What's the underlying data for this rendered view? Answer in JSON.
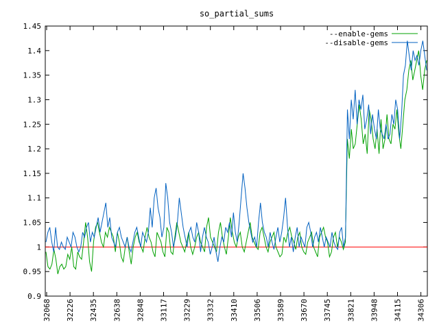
{
  "chart_data": {
    "type": "line",
    "title": "so_partial_sums",
    "xlabel": "",
    "ylabel": "",
    "ylim": [
      0.9,
      1.45
    ],
    "y_ticks": [
      "0.9",
      "0.95",
      "1",
      "1.05",
      "1.1",
      "1.15",
      "1.2",
      "1.25",
      "1.3",
      "1.35",
      "1.4",
      "1.45"
    ],
    "x_tick_labels": [
      "32068",
      "32226",
      "32435",
      "32638",
      "32848",
      "33117",
      "33229",
      "33332",
      "33410",
      "33506",
      "33589",
      "33670",
      "33745",
      "33821",
      "33948",
      "34115",
      "34306"
    ],
    "grid": false,
    "legend_position": "top-right",
    "reference_line": {
      "value": 1.0,
      "color": "#ff0000"
    },
    "series": [
      {
        "name": "--enable-gems",
        "color": "#00a000",
        "values": [
          0.99,
          0.96,
          0.955,
          0.965,
          0.995,
          0.975,
          0.945,
          0.96,
          0.965,
          0.955,
          0.96,
          0.985,
          0.975,
          1.0,
          0.96,
          0.955,
          0.99,
          0.98,
          0.975,
          1.01,
          1.05,
          1.02,
          0.97,
          0.95,
          1.01,
          1.04,
          1.05,
          1.03,
          1.01,
          1.0,
          1.03,
          1.02,
          1.04,
          1.03,
          1.02,
          0.99,
          1.03,
          1.01,
          0.98,
          0.97,
          1.0,
          1.02,
          0.99,
          0.965,
          1.0,
          1.02,
          1.03,
          1.01,
          1.0,
          0.99,
          1.02,
          1.04,
          1.02,
          1.01,
          0.99,
          0.98,
          1.03,
          1.02,
          1.01,
          0.99,
          0.98,
          1.04,
          1.03,
          0.99,
          0.985,
          1.02,
          1.05,
          1.03,
          1.01,
          1.0,
          0.99,
          1.01,
          1.03,
          1.0,
          0.985,
          1.0,
          1.02,
          1.03,
          1.01,
          1.0,
          0.99,
          1.04,
          1.06,
          1.02,
          1.01,
          1.0,
          0.99,
          1.03,
          1.05,
          1.02,
          1.0,
          0.985,
          1.02,
          1.06,
          1.03,
          1.01,
          1.0,
          1.02,
          1.03,
          1.0,
          0.99,
          1.01,
          1.03,
          1.05,
          1.02,
          1.01,
          1.0,
          0.995,
          1.03,
          1.04,
          1.02,
          1.0,
          0.99,
          1.01,
          1.02,
          1.03,
          1.0,
          0.99,
          0.98,
          0.985,
          1.02,
          1.01,
          1.03,
          1.04,
          1.02,
          1.01,
          0.995,
          1.02,
          1.03,
          1.0,
          0.99,
          0.985,
          1.01,
          1.02,
          1.03,
          1.0,
          0.99,
          0.98,
          1.02,
          1.03,
          1.04,
          1.02,
          1.01,
          0.98,
          0.99,
          1.02,
          1.03,
          1.0,
          1.02,
          1.01,
          0.995,
          1.01,
          1.22,
          1.18,
          1.24,
          1.2,
          1.21,
          1.25,
          1.29,
          1.26,
          1.21,
          1.23,
          1.19,
          1.28,
          1.26,
          1.22,
          1.2,
          1.24,
          1.19,
          1.26,
          1.2,
          1.22,
          1.27,
          1.22,
          1.21,
          1.25,
          1.24,
          1.28,
          1.23,
          1.2,
          1.25,
          1.3,
          1.32,
          1.36,
          1.38,
          1.34,
          1.36,
          1.38,
          1.4,
          1.35,
          1.32,
          1.36,
          1.38
        ]
      },
      {
        "name": "--disable-gems",
        "color": "#0060c0",
        "values": [
          1.01,
          1.03,
          1.04,
          1.01,
          0.99,
          1.04,
          1.0,
          0.995,
          1.01,
          1.0,
          0.995,
          1.02,
          1.01,
          1.0,
          1.03,
          1.02,
          1.0,
          0.99,
          1.0,
          1.03,
          1.02,
          1.04,
          1.05,
          1.01,
          1.03,
          1.02,
          1.04,
          1.06,
          1.03,
          1.05,
          1.07,
          1.09,
          1.04,
          1.06,
          1.02,
          1.01,
          1.0,
          1.03,
          1.04,
          1.02,
          1.01,
          1.0,
          1.02,
          1.0,
          0.99,
          1.01,
          1.03,
          1.04,
          1.02,
          1.0,
          1.03,
          1.02,
          1.01,
          1.03,
          1.08,
          1.04,
          1.1,
          1.12,
          1.08,
          1.06,
          1.02,
          1.04,
          1.13,
          1.1,
          1.05,
          1.03,
          1.0,
          1.02,
          1.05,
          1.1,
          1.07,
          1.04,
          1.02,
          1.0,
          1.03,
          1.04,
          1.02,
          1.01,
          1.05,
          1.03,
          0.99,
          1.02,
          1.04,
          1.02,
          1.01,
          0.985,
          1.0,
          1.02,
          0.99,
          0.97,
          1.0,
          1.02,
          1.01,
          1.04,
          1.03,
          1.05,
          1.02,
          1.07,
          1.03,
          1.01,
          1.05,
          1.1,
          1.15,
          1.12,
          1.08,
          1.05,
          1.03,
          1.01,
          1.02,
          1.0,
          1.05,
          1.09,
          1.05,
          1.03,
          1.02,
          1.0,
          1.03,
          1.01,
          0.995,
          1.02,
          1.04,
          1.01,
          1.03,
          1.06,
          1.1,
          1.04,
          1.0,
          1.02,
          0.99,
          1.02,
          1.04,
          1.0,
          1.02,
          1.01,
          1.0,
          1.04,
          1.05,
          1.03,
          1.0,
          1.02,
          1.03,
          1.01,
          1.04,
          1.02,
          1.0,
          1.02,
          1.01,
          1.0,
          1.03,
          1.01,
          1.0,
          0.995,
          1.03,
          1.04,
          1.0,
          1.02,
          1.28,
          1.22,
          1.3,
          1.26,
          1.32,
          1.25,
          1.3,
          1.28,
          1.31,
          1.24,
          1.26,
          1.29,
          1.23,
          1.27,
          1.24,
          1.22,
          1.28,
          1.24,
          1.23,
          1.22,
          1.25,
          1.22,
          1.23,
          1.27,
          1.25,
          1.3,
          1.28,
          1.22,
          1.27,
          1.35,
          1.37,
          1.42,
          1.39,
          1.36,
          1.4,
          1.38,
          1.39,
          1.37,
          1.4,
          1.42,
          1.39,
          1.36
        ]
      }
    ]
  }
}
